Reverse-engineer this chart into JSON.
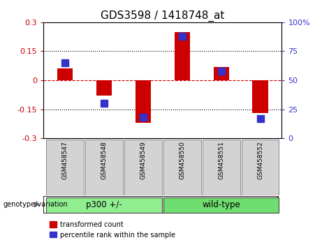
{
  "title": "GDS3598 / 1418748_at",
  "samples": [
    "GSM458547",
    "GSM458548",
    "GSM458549",
    "GSM458550",
    "GSM458551",
    "GSM458552"
  ],
  "red_bars": [
    0.06,
    -0.08,
    -0.22,
    0.25,
    0.07,
    -0.17
  ],
  "blue_dots": [
    65,
    30,
    18,
    88,
    58,
    17
  ],
  "group_label": "genotype/variation",
  "group1_label": "p300 +/-",
  "group1_range": [
    0,
    2
  ],
  "group2_label": "wild-type",
  "group2_range": [
    3,
    5
  ],
  "ylim": [
    -0.3,
    0.3
  ],
  "y2lim": [
    0,
    100
  ],
  "yticks": [
    -0.3,
    -0.15,
    0.0,
    0.15,
    0.3
  ],
  "y2ticks": [
    0,
    25,
    50,
    75,
    100
  ],
  "red_color": "#CC0000",
  "blue_color": "#3333CC",
  "bar_width": 0.4,
  "dot_size": 45,
  "legend_red": "transformed count",
  "legend_blue": "percentile rank within the sample",
  "background_color": "#ffffff",
  "zero_line_color": "#CC0000",
  "title_fontsize": 11,
  "tick_fontsize": 8,
  "label_fontsize": 7.5,
  "group_fontsize": 8.5,
  "gray_box": "#d3d3d3",
  "green_box": "#90EE90",
  "green_box2": "#6fdd6f"
}
